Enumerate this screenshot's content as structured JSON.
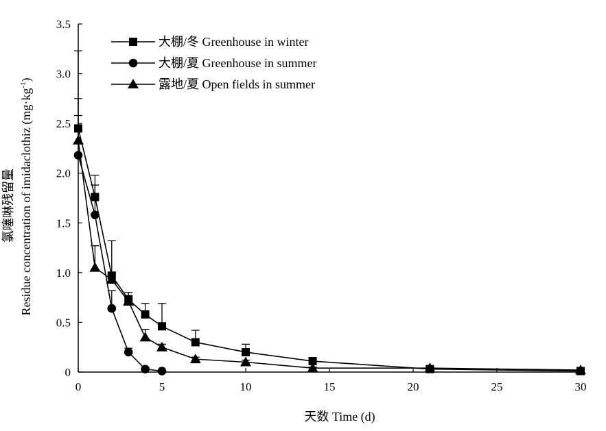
{
  "chart_data": {
    "type": "line",
    "xlabel": "天数 Time (d)",
    "ylabel_cn": "氯噻啉残留量",
    "ylabel_en": "Residue concentration of imidaclothiz (mg·kg",
    "ylabel_sup": "-1",
    "ylabel_close": ")",
    "xlim": [
      0,
      30
    ],
    "ylim": [
      0,
      3.5
    ],
    "xticks": [
      0,
      5,
      10,
      15,
      20,
      25,
      30
    ],
    "yticks": [
      0,
      0.5,
      1.0,
      1.5,
      2.0,
      2.5,
      3.0,
      3.5
    ],
    "xtick_labels": [
      "0",
      "5",
      "10",
      "15",
      "20",
      "25",
      "30"
    ],
    "ytick_labels": [
      "0",
      "0.5",
      "1.0",
      "1.5",
      "2.0",
      "2.5",
      "3.0",
      "3.5"
    ],
    "legend_position": "top-left",
    "series": [
      {
        "name": "大棚/冬 Greenhouse in winter",
        "marker": "square",
        "x": [
          0,
          1,
          2,
          3,
          4,
          5,
          7,
          10,
          14,
          21,
          30
        ],
        "y": [
          2.45,
          1.76,
          0.97,
          0.73,
          0.58,
          0.46,
          0.3,
          0.2,
          0.11,
          0.03,
          0.01
        ],
        "err": [
          0.3,
          0.22,
          0.35,
          0.07,
          0.11,
          0.23,
          0.12,
          0.08,
          0.02,
          0.01,
          0.0
        ]
      },
      {
        "name": "大棚/夏 Greenhouse in summer",
        "marker": "circle",
        "x": [
          0,
          1,
          2,
          3,
          4,
          5
        ],
        "y": [
          2.18,
          1.58,
          0.64,
          0.2,
          0.03,
          0.01
        ],
        "err": [
          0.4,
          0.3,
          0.18,
          0.04,
          0.01,
          0.0
        ]
      },
      {
        "name": "露地/夏 Open fields in summer",
        "marker": "triangle",
        "x": [
          0,
          1,
          2,
          3,
          4,
          5,
          7,
          10,
          14,
          21,
          30
        ],
        "y": [
          2.33,
          1.05,
          0.93,
          0.71,
          0.35,
          0.25,
          0.13,
          0.1,
          0.04,
          0.04,
          0.02
        ],
        "err": [
          0.9,
          0.22,
          0.06,
          0.06,
          0.08,
          0.03,
          0.02,
          0.02,
          0.01,
          0.01,
          0.0
        ]
      }
    ]
  }
}
